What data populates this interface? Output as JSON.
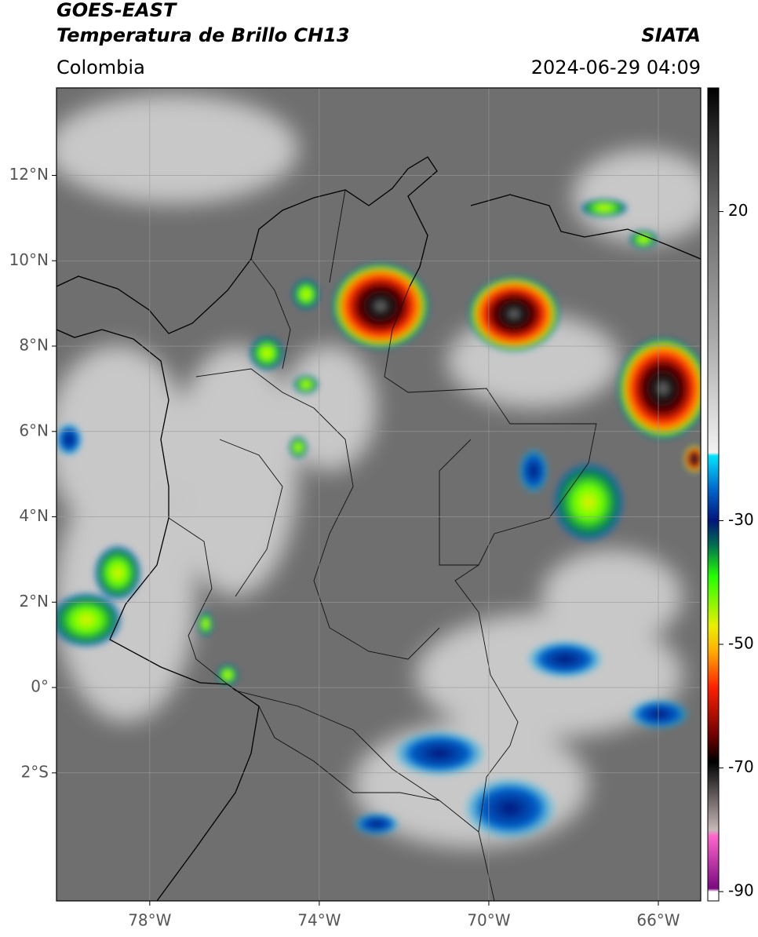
{
  "header": {
    "title": "GOES-EAST",
    "subtitle": "Temperatura de Brillo CH13",
    "source": "SIATA",
    "region": "Colombia",
    "datetime": "2024-06-29 04:09"
  },
  "map": {
    "xlim": [
      -80.2,
      -65
    ],
    "ylim": [
      -5,
      14.05
    ],
    "grid": true,
    "xticks": [
      {
        "value": -78,
        "label": "78°W"
      },
      {
        "value": -74,
        "label": "74°W"
      },
      {
        "value": -70,
        "label": "70°W"
      },
      {
        "value": -66,
        "label": "66°W"
      }
    ],
    "yticks": [
      {
        "value": 12,
        "label": "12°N"
      },
      {
        "value": 10,
        "label": "10°N"
      },
      {
        "value": 8,
        "label": "8°N"
      },
      {
        "value": 6,
        "label": "6°N"
      },
      {
        "value": 4,
        "label": "4°N"
      },
      {
        "value": 2,
        "label": "2°N"
      },
      {
        "value": 0,
        "label": "0°"
      },
      {
        "value": -2,
        "label": "2°S"
      }
    ]
  },
  "colorbar": {
    "lim": [
      40,
      -91.5
    ],
    "ticks": [
      20,
      -30,
      -50,
      -70,
      -90
    ],
    "stops": [
      {
        "value": 40,
        "color": "#000000"
      },
      {
        "value": 30,
        "color": "#3a3a3a"
      },
      {
        "value": 20,
        "color": "#6a6a6a"
      },
      {
        "value": 0,
        "color": "#a8a8a8"
      },
      {
        "value": -19,
        "color": "#f2f2f2"
      },
      {
        "value": -19.5,
        "color": "#00e5ff"
      },
      {
        "value": -25,
        "color": "#0066cc"
      },
      {
        "value": -30,
        "color": "#00157a"
      },
      {
        "value": -34,
        "color": "#007050"
      },
      {
        "value": -39,
        "color": "#22ff00"
      },
      {
        "value": -47,
        "color": "#e8f000"
      },
      {
        "value": -51,
        "color": "#ffb000"
      },
      {
        "value": -57,
        "color": "#ff2000"
      },
      {
        "value": -65,
        "color": "#6a0000"
      },
      {
        "value": -69,
        "color": "#000000"
      },
      {
        "value": -80,
        "color": "#c8b8b8"
      },
      {
        "value": -81,
        "color": "#ff66cc"
      },
      {
        "value": -89.5,
        "color": "#7a0a80"
      },
      {
        "value": -90,
        "color": "#ffffff"
      }
    ]
  }
}
